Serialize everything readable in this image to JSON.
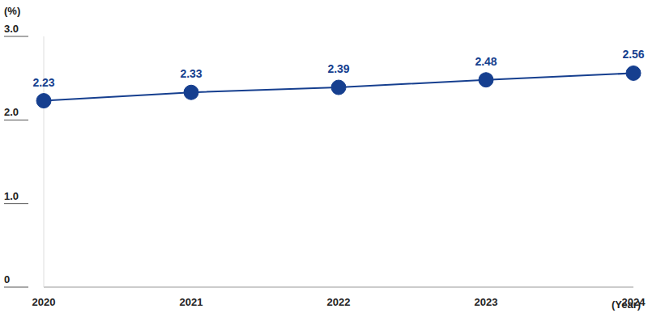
{
  "chart_data": {
    "type": "line",
    "y_label": "(%)",
    "x_label": "(Year)",
    "categories": [
      "2020",
      "2021",
      "2022",
      "2023",
      "2024"
    ],
    "values": [
      2.23,
      2.33,
      2.39,
      2.48,
      2.56
    ],
    "color": "#163f8f",
    "ylim": [
      0,
      3
    ],
    "yticks": [
      0,
      {
        "value": 1,
        "label": "1.0"
      },
      {
        "value": 2,
        "label": "2.0"
      },
      {
        "value": 3,
        "label": "3.0"
      }
    ],
    "grid": false,
    "data_labels": true,
    "marker": "circle"
  }
}
